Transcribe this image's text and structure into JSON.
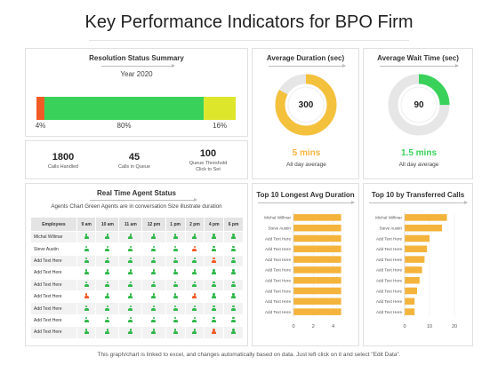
{
  "title": "Key Performance Indicators for BPO Firm",
  "footer": "This graph/chart is linked to excel, and changes automatically based on data. Just left click on it and select \"Edit Data\".",
  "colors": {
    "orange": "#f15a24",
    "green": "#3ad15a",
    "yellow": "#dde62b",
    "amber": "#f4b43c",
    "grey_ring": "#e6e6e6"
  },
  "resolution": {
    "title": "Resolution Status Summary",
    "year": "Year 2020",
    "segments": [
      {
        "value": 4,
        "label": "4%",
        "color": "#f15a24"
      },
      {
        "value": 80,
        "label": "80%",
        "color": "#3ad15a"
      },
      {
        "value": 16,
        "label": "16%",
        "color": "#dde62b"
      }
    ]
  },
  "kpis": [
    {
      "value": "1800",
      "label": "Calls Handled"
    },
    {
      "value": "45",
      "label": "Calls in Queue"
    },
    {
      "value": "100",
      "label": "Queue Threshold Click to Set"
    }
  ],
  "avg_duration": {
    "title": "Average Duration (sec)",
    "center": "300",
    "fill_fraction": 0.83,
    "big": "5 mins",
    "big_color": "#f4b43c",
    "ring_color": "#f4c13c",
    "sub": "All day average"
  },
  "avg_wait": {
    "title": "Average Wait Time (sec)",
    "center": "90",
    "fill_fraction": 0.25,
    "big": "1.5 mins",
    "big_color": "#3ad15a",
    "ring_color": "#3ad15a",
    "sub": "All day average"
  },
  "agent_status": {
    "title": "Real Time Agent Status",
    "subtitle": "Agents Chart Green Agents are in conversation Size illustrate duration",
    "columns": [
      "Employees",
      "9 am",
      "10 am",
      "11 am",
      "12 pm",
      "1 pm",
      "2 pm",
      "4 pm",
      "6 pm"
    ],
    "rows": [
      {
        "name": "Michal Willmar",
        "cells": [
          "g",
          "g",
          "g",
          "g",
          "g",
          "g",
          "g",
          "g"
        ]
      },
      {
        "name": "Steve Austin",
        "cells": [
          "g",
          "g",
          "g",
          "g",
          "g",
          "o",
          "g",
          "g"
        ]
      },
      {
        "name": "Add Text Here",
        "cells": [
          "g",
          "g",
          "g",
          "g",
          "g",
          "g",
          "o",
          "g"
        ]
      },
      {
        "name": "Add Text Here",
        "cells": [
          "g",
          "g",
          "g",
          "g",
          "g",
          "g",
          "g",
          "g"
        ]
      },
      {
        "name": "Add Text Here",
        "cells": [
          "g",
          "g",
          "g",
          "g",
          "g",
          "g",
          "g",
          "g"
        ]
      },
      {
        "name": "Add Text Here",
        "cells": [
          "o",
          "g",
          "g",
          "g",
          "g",
          "o",
          "g",
          "g"
        ]
      },
      {
        "name": "Add Text Here",
        "cells": [
          "g",
          "g",
          "g",
          "g",
          "g",
          "g",
          "g",
          "g"
        ]
      },
      {
        "name": "Add Text Here",
        "cells": [
          "g",
          "g",
          "g",
          "g",
          "g",
          "g",
          "g",
          "g"
        ]
      },
      {
        "name": "Add Text Here",
        "cells": [
          "g",
          "g",
          "g",
          "g",
          "g",
          "g",
          "o",
          "g"
        ]
      }
    ]
  },
  "chart_data": [
    {
      "type": "bar",
      "orientation": "horizontal",
      "title": "Top 10 Longest Avg Duration",
      "categories": [
        "Michal Willmar",
        "Steve Austin",
        "Add Text Here",
        "Add Text Here",
        "Add Text Here",
        "Add Text Here",
        "Add Text Here",
        "Add Text Here",
        "Add Text Here",
        "Add Text Here"
      ],
      "values": [
        4.8,
        4.8,
        4.8,
        4.8,
        4.8,
        4.8,
        4.8,
        4.8,
        4.8,
        4.8
      ],
      "xlim": [
        0,
        6
      ],
      "xticks": [
        "0",
        "2",
        "4"
      ],
      "xtick_values": [
        0,
        2,
        4
      ],
      "color": "#f4b43c"
    },
    {
      "type": "bar",
      "orientation": "horizontal",
      "title": "Top 10 by Transferred Calls",
      "categories": [
        "Michal Willmar",
        "Steve Austin",
        "Add Text Here",
        "Add Text Here",
        "Add Text Here",
        "Add Text Here",
        "Add Text Here",
        "Add Text Here",
        "Add Text Here",
        "Add Text Here"
      ],
      "values": [
        17,
        15,
        10,
        9,
        8,
        7,
        6,
        5,
        4,
        4
      ],
      "xlim": [
        0,
        25
      ],
      "xticks": [
        "0",
        "10",
        "20"
      ],
      "xtick_values": [
        0,
        10,
        20
      ],
      "color": "#f4b43c"
    }
  ]
}
